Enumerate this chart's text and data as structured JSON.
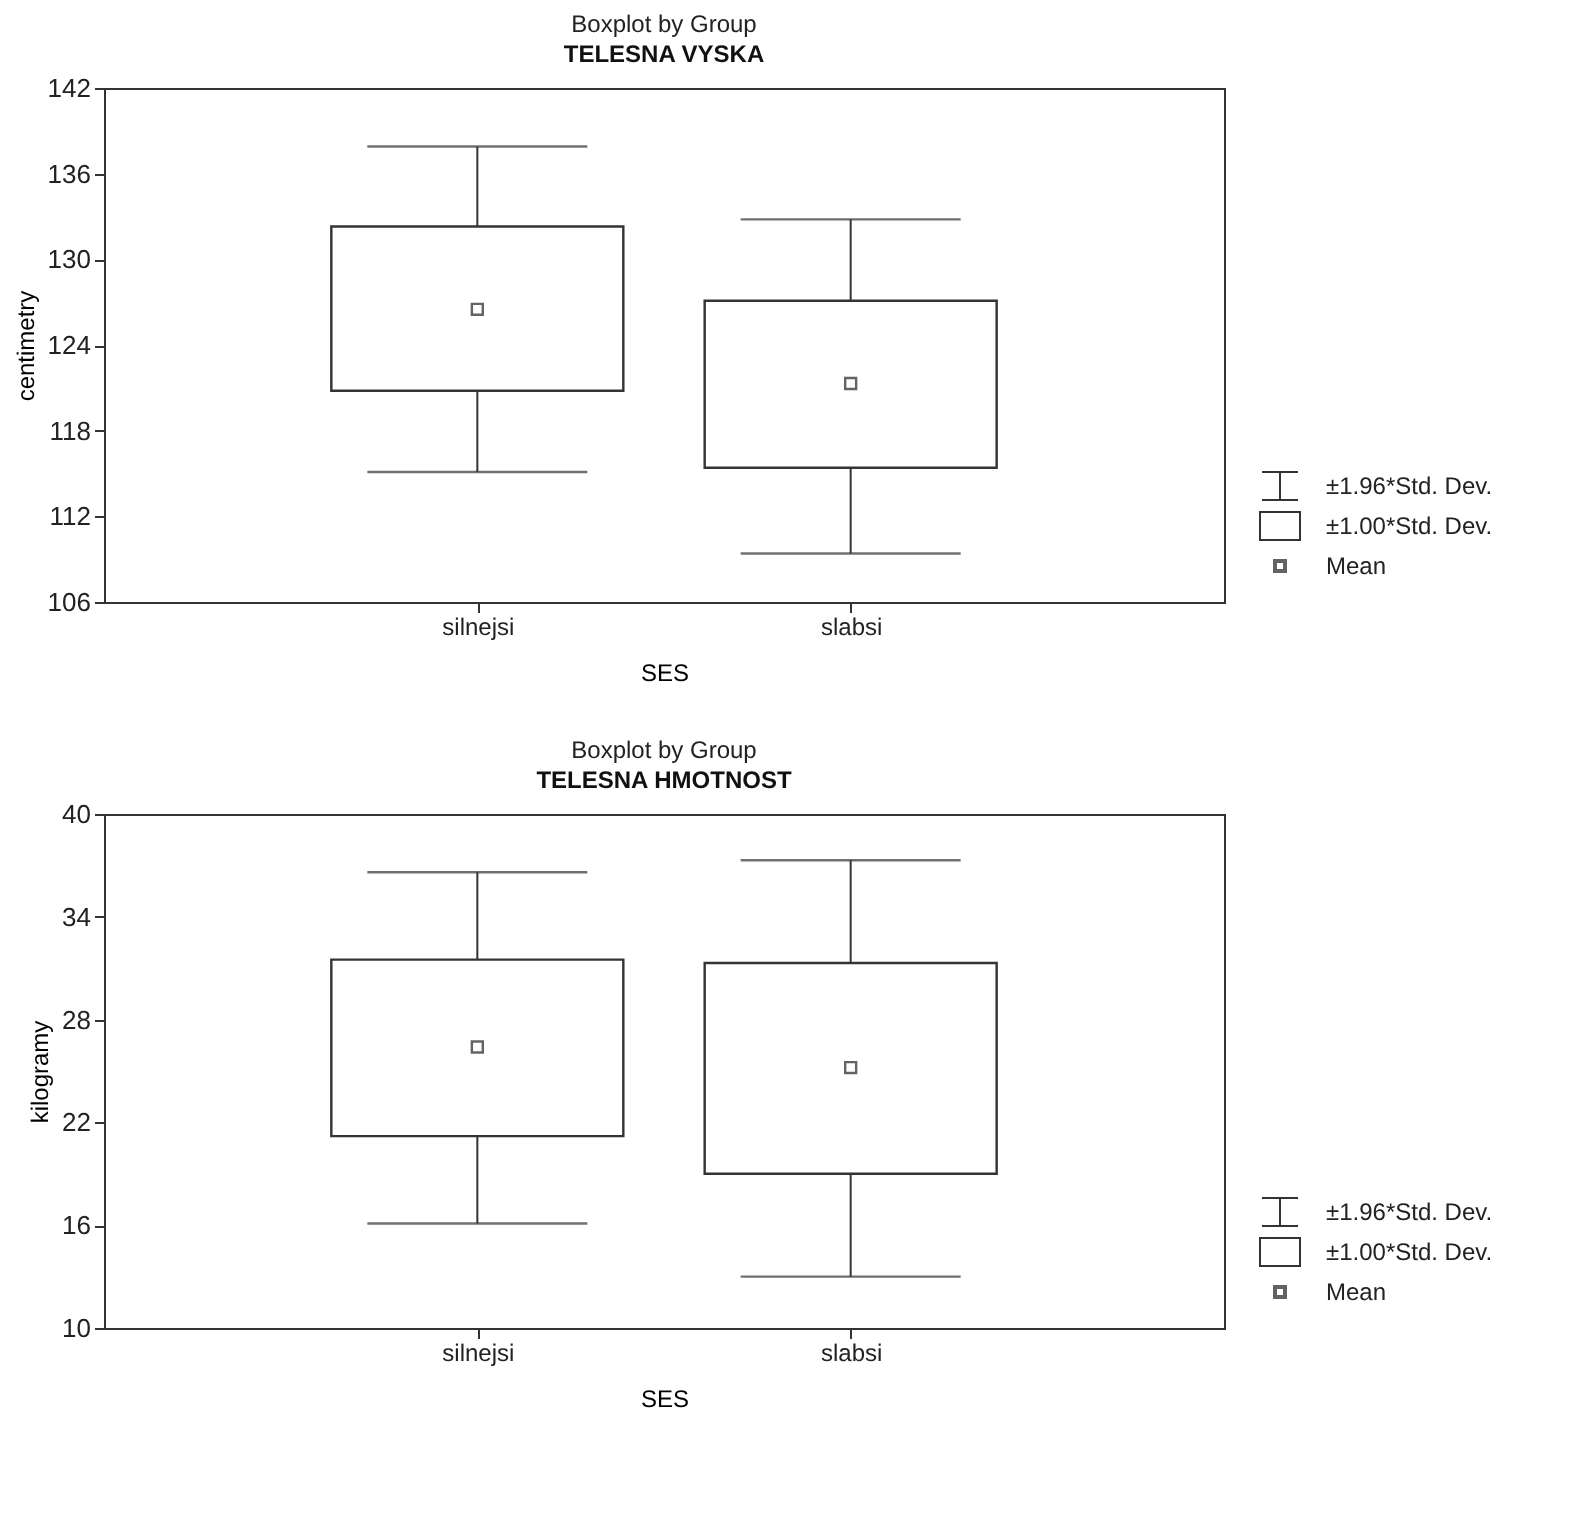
{
  "chart_data": [
    {
      "type": "box",
      "title": "Boxplot by Group",
      "subtitle": "TELESNA VYSKA",
      "xlabel": "SES",
      "ylabel": "centimetry",
      "categories": [
        "silnejsi",
        "slabsi"
      ],
      "boxes": [
        {
          "low": 115.1,
          "q1": 120.8,
          "q3": 132.3,
          "high": 137.9,
          "mean": 126.5
        },
        {
          "low": 109.4,
          "q1": 115.4,
          "q3": 127.1,
          "high": 132.8,
          "mean": 121.3
        }
      ],
      "ylim": [
        106,
        142
      ],
      "yticks": [
        106,
        112,
        118,
        124,
        130,
        136,
        142
      ],
      "grid": false,
      "annotations": [
        "±1.96*Std. Dev.",
        "±1.00*Std. Dev.",
        "Mean"
      ]
    },
    {
      "type": "box",
      "title": "Boxplot by Group",
      "subtitle": "TELESNA HMOTNOST",
      "xlabel": "SES",
      "ylabel": "kilogramy",
      "categories": [
        "silnejsi",
        "slabsi"
      ],
      "boxes": [
        {
          "low": 16.1,
          "q1": 21.2,
          "q3": 31.5,
          "high": 36.6,
          "mean": 26.4
        },
        {
          "low": 13.0,
          "q1": 19.0,
          "q3": 31.3,
          "high": 37.3,
          "mean": 25.2
        }
      ],
      "ylim": [
        10,
        40
      ],
      "yticks": [
        10,
        16,
        22,
        28,
        34,
        40
      ],
      "grid": false,
      "annotations": [
        "±1.96*Std. Dev.",
        "±1.00*Std. Dev.",
        "Mean"
      ]
    }
  ]
}
